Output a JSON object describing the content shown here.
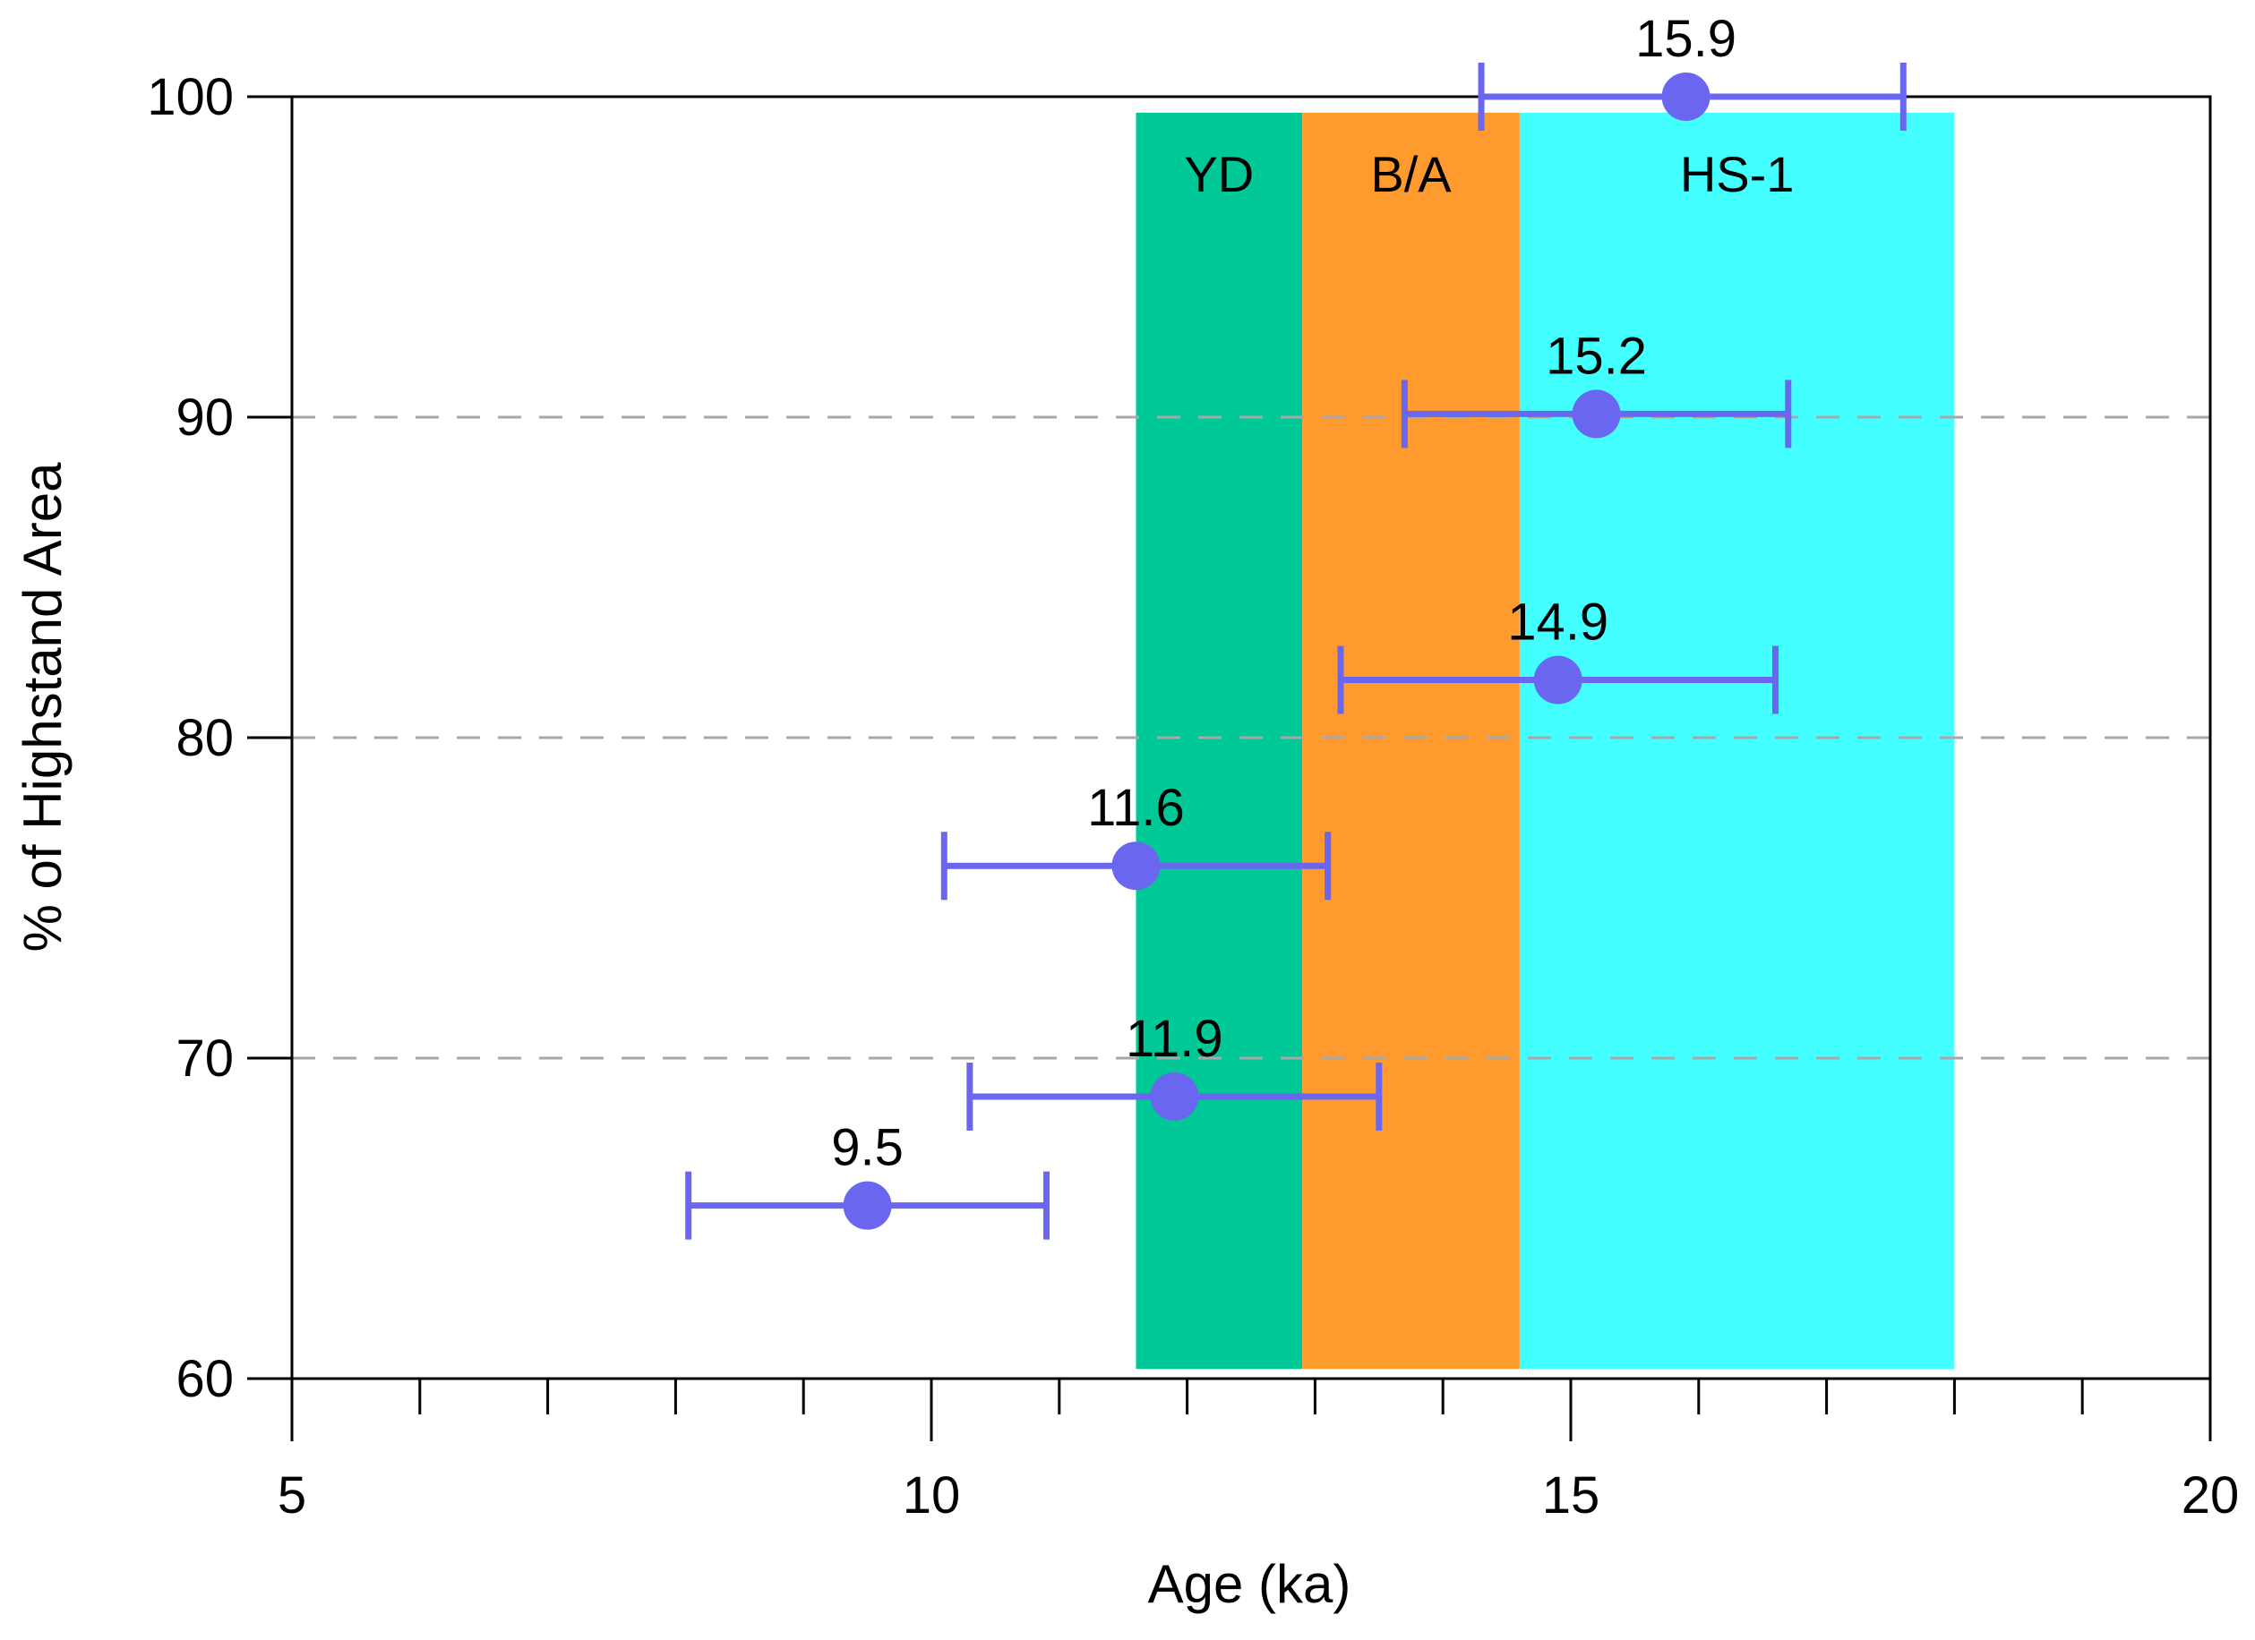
{
  "chart_data": {
    "type": "scatter",
    "title": "",
    "xlabel": "Age (ka)",
    "ylabel": "% of Highstand Area",
    "xlim": [
      5,
      20
    ],
    "ylim": [
      60,
      100
    ],
    "x_ticks": [
      "5",
      "10",
      "15",
      "20"
    ],
    "y_ticks": [
      "60",
      "70",
      "80",
      "90",
      "100"
    ],
    "gridlines_y": [
      70,
      80,
      90
    ],
    "colors": {
      "points": "#6b66f0",
      "errorbars": "#6b66f0",
      "grid": "#a8a8a8"
    },
    "bands": [
      {
        "label": "YD",
        "x0": 11.6,
        "x1": 12.9,
        "color": "#00c896"
      },
      {
        "label": "B/A",
        "x0": 12.9,
        "x1": 14.6,
        "color": "#ff9a2e"
      },
      {
        "label": "HS-1",
        "x0": 14.6,
        "x1": 18.0,
        "color": "#44ffff"
      }
    ],
    "points": [
      {
        "label": "15.9",
        "x": 15.9,
        "y": 100,
        "xerr_low": 14.3,
        "xerr_high": 17.6
      },
      {
        "label": "15.2",
        "x": 15.2,
        "y": 90.1,
        "xerr_low": 13.7,
        "xerr_high": 16.7
      },
      {
        "label": "14.9",
        "x": 14.9,
        "y": 81.8,
        "xerr_low": 13.2,
        "xerr_high": 16.6
      },
      {
        "label": "11.6",
        "x": 11.6,
        "y": 76.0,
        "xerr_low": 10.1,
        "xerr_high": 13.1
      },
      {
        "label": "11.9",
        "x": 11.9,
        "y": 68.8,
        "xerr_low": 10.3,
        "xerr_high": 13.5
      },
      {
        "label": "9.5",
        "x": 9.5,
        "y": 65.4,
        "xerr_low": 8.1,
        "xerr_high": 10.9
      }
    ]
  }
}
